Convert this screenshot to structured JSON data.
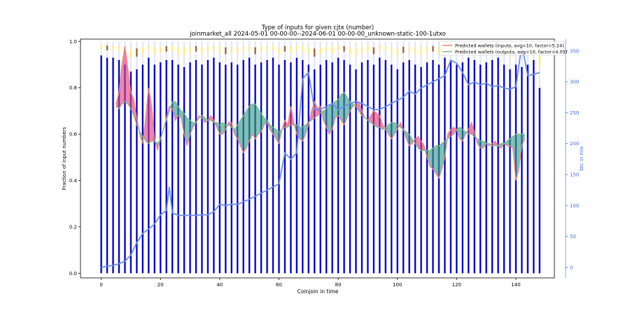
{
  "chart_data": {
    "type": "bar",
    "title": "Type of inputs for given cjtx (number)",
    "subtitle": "joinmarket_all 2024-05-01 00-00-00--2024-06-01 00-00-00_unknown-static-100-1utxo",
    "xlabel": "Coinjoin in time",
    "ylabel": "Fraction of input numbers",
    "y2label": "btc in mix",
    "xlim": [
      -7,
      153
    ],
    "ylim": [
      -0.02,
      1.01
    ],
    "y2lim": [
      -17,
      369
    ],
    "xticks": [
      0,
      20,
      40,
      60,
      80,
      100,
      120,
      140
    ],
    "yticks": [
      0.0,
      0.2,
      0.4,
      0.6,
      0.8,
      1.0
    ],
    "y2ticks": [
      0,
      50,
      100,
      150,
      200,
      250,
      300,
      350
    ],
    "grid": false,
    "legend_position": "top-right",
    "bar_colors": {
      "fresh_inputs": "#0000cd",
      "remixed_inputs": "#ffe866",
      "other_inputs": "#e6e6fa",
      "friends_inputs": "#8b4513"
    },
    "bars": {
      "x": [
        0,
        2,
        4,
        6,
        8,
        10,
        12,
        14,
        16,
        18,
        20,
        22,
        24,
        26,
        28,
        30,
        32,
        34,
        36,
        38,
        40,
        42,
        44,
        46,
        48,
        50,
        52,
        54,
        56,
        58,
        60,
        62,
        64,
        66,
        68,
        70,
        72,
        74,
        76,
        78,
        80,
        82,
        84,
        86,
        88,
        90,
        92,
        94,
        96,
        98,
        100,
        102,
        104,
        106,
        108,
        110,
        112,
        114,
        116,
        118,
        120,
        122,
        124,
        126,
        128,
        130,
        132,
        134,
        136,
        138,
        140,
        142,
        144,
        146,
        148
      ],
      "fresh_fraction": [
        0.94,
        0.93,
        0.93,
        0.92,
        0.9,
        0.87,
        0.88,
        0.9,
        0.93,
        0.9,
        0.91,
        0.92,
        0.92,
        0.9,
        0.89,
        0.91,
        0.92,
        0.9,
        0.92,
        0.93,
        0.91,
        0.9,
        0.91,
        0.9,
        0.92,
        0.93,
        0.9,
        0.91,
        0.92,
        0.93,
        0.9,
        0.92,
        0.91,
        0.93,
        0.92,
        0.9,
        0.88,
        0.9,
        0.92,
        0.91,
        0.93,
        0.92,
        0.9,
        0.88,
        0.91,
        0.92,
        0.9,
        0.93,
        0.92,
        0.9,
        0.88,
        0.91,
        0.92,
        0.9,
        0.89,
        0.91,
        0.92,
        0.9,
        0.93,
        0.92,
        0.9,
        0.91,
        0.93,
        0.92,
        0.9,
        0.91,
        0.92,
        0.93,
        0.9,
        0.88,
        0.9,
        0.89,
        0.9,
        0.92,
        0.8
      ]
    },
    "series": [
      {
        "name": "Predicted wallets (inputs, avg=10, factor=5.24)",
        "color": "#ff7f7f",
        "x": [
          5,
          6,
          7,
          8,
          9,
          10,
          11,
          12,
          13,
          14,
          15,
          16,
          17,
          18,
          19,
          20,
          21,
          22,
          23,
          24,
          25,
          26,
          27,
          28,
          29,
          30,
          31,
          32,
          33,
          34,
          35,
          36,
          37,
          38,
          39,
          40,
          41,
          42,
          43,
          44,
          45,
          46,
          47,
          48,
          49,
          50,
          51,
          52,
          53,
          54,
          55,
          56,
          57,
          58,
          59,
          60,
          61,
          62,
          63,
          64,
          65,
          66,
          67,
          68,
          69,
          70,
          71,
          72,
          73,
          74,
          75,
          76,
          77,
          78,
          79,
          80,
          81,
          82,
          83,
          84,
          85,
          86,
          87,
          88,
          89,
          90,
          91,
          92,
          93,
          94,
          95,
          96,
          97,
          98,
          99,
          100,
          101,
          102,
          103,
          104,
          105,
          106,
          107,
          108,
          109,
          110,
          111,
          112,
          113,
          114,
          115,
          116,
          117,
          118,
          119,
          120,
          121,
          122,
          123,
          124,
          125,
          126,
          127,
          128,
          129,
          130,
          131,
          132,
          133,
          134,
          135,
          136,
          137,
          138,
          139,
          140,
          141,
          142,
          143
        ],
        "values": [
          0.73,
          0.78,
          0.9,
          0.98,
          0.88,
          0.78,
          0.75,
          0.67,
          0.6,
          0.56,
          0.67,
          0.8,
          0.72,
          0.58,
          0.53,
          0.58,
          0.62,
          0.67,
          0.72,
          0.71,
          0.66,
          0.68,
          0.67,
          0.6,
          0.55,
          0.6,
          0.63,
          0.65,
          0.68,
          0.67,
          0.65,
          0.66,
          0.68,
          0.66,
          0.63,
          0.6,
          0.6,
          0.62,
          0.65,
          0.65,
          0.6,
          0.58,
          0.55,
          0.52,
          0.54,
          0.57,
          0.6,
          0.58,
          0.6,
          0.61,
          0.64,
          0.65,
          0.62,
          0.6,
          0.58,
          0.56,
          0.62,
          0.66,
          0.64,
          0.72,
          0.65,
          0.6,
          0.58,
          0.57,
          0.6,
          0.64,
          0.7,
          0.74,
          0.71,
          0.72,
          0.66,
          0.63,
          0.6,
          0.62,
          0.67,
          0.68,
          0.66,
          0.64,
          0.67,
          0.7,
          0.72,
          0.73,
          0.74,
          0.7,
          0.67,
          0.66,
          0.68,
          0.7,
          0.69,
          0.68,
          0.64,
          0.62,
          0.6,
          0.58,
          0.6,
          0.62,
          0.65,
          0.62,
          0.58,
          0.55,
          0.56,
          0.58,
          0.59,
          0.57,
          0.55,
          0.5,
          0.46,
          0.45,
          0.43,
          0.41,
          0.45,
          0.5,
          0.6,
          0.62,
          0.63,
          0.62,
          0.58,
          0.57,
          0.6,
          0.62,
          0.65,
          0.61,
          0.56,
          0.54,
          0.54,
          0.56,
          0.55,
          0.56,
          0.57,
          0.55,
          0.54,
          0.56,
          0.55,
          0.55,
          0.54,
          0.4,
          0.45,
          0.55,
          0.58
        ]
      },
      {
        "name": "Predicted wallets (outputs, avg=10, factor=4.05)",
        "color": "#7fbf7f",
        "x": [
          5,
          6,
          7,
          8,
          9,
          10,
          11,
          12,
          13,
          14,
          15,
          16,
          17,
          18,
          19,
          20,
          21,
          22,
          23,
          24,
          25,
          26,
          27,
          28,
          29,
          30,
          31,
          32,
          33,
          34,
          35,
          36,
          37,
          38,
          39,
          40,
          41,
          42,
          43,
          44,
          45,
          46,
          47,
          48,
          49,
          50,
          51,
          52,
          53,
          54,
          55,
          56,
          57,
          58,
          59,
          60,
          61,
          62,
          63,
          64,
          65,
          66,
          67,
          68,
          69,
          70,
          71,
          72,
          73,
          74,
          75,
          76,
          77,
          78,
          79,
          80,
          81,
          82,
          83,
          84,
          85,
          86,
          87,
          88,
          89,
          90,
          91,
          92,
          93,
          94,
          95,
          96,
          97,
          98,
          99,
          100,
          101,
          102,
          103,
          104,
          105,
          106,
          107,
          108,
          109,
          110,
          111,
          112,
          113,
          114,
          115,
          116,
          117,
          118,
          119,
          120,
          121,
          122,
          123,
          124,
          125,
          126,
          127,
          128,
          129,
          130,
          131,
          132,
          133,
          134,
          135,
          136,
          137,
          138,
          139,
          140,
          141,
          142,
          143
        ],
        "values": [
          0.72,
          0.71,
          0.73,
          0.74,
          0.73,
          0.71,
          0.68,
          0.64,
          0.61,
          0.59,
          0.57,
          0.56,
          0.57,
          0.57,
          0.56,
          0.58,
          0.62,
          0.66,
          0.7,
          0.74,
          0.74,
          0.72,
          0.7,
          0.69,
          0.67,
          0.66,
          0.65,
          0.65,
          0.67,
          0.68,
          0.67,
          0.66,
          0.66,
          0.65,
          0.65,
          0.64,
          0.65,
          0.64,
          0.64,
          0.63,
          0.62,
          0.64,
          0.66,
          0.68,
          0.7,
          0.72,
          0.73,
          0.73,
          0.71,
          0.69,
          0.67,
          0.66,
          0.64,
          0.63,
          0.62,
          0.61,
          0.62,
          0.63,
          0.63,
          0.64,
          0.64,
          0.64,
          0.63,
          0.63,
          0.64,
          0.65,
          0.66,
          0.67,
          0.68,
          0.69,
          0.7,
          0.71,
          0.72,
          0.73,
          0.74,
          0.75,
          0.77,
          0.78,
          0.76,
          0.74,
          0.73,
          0.72,
          0.7,
          0.68,
          0.67,
          0.66,
          0.65,
          0.64,
          0.63,
          0.63,
          0.62,
          0.63,
          0.64,
          0.65,
          0.65,
          0.64,
          0.63,
          0.62,
          0.61,
          0.6,
          0.58,
          0.56,
          0.54,
          0.53,
          0.53,
          0.53,
          0.53,
          0.54,
          0.55,
          0.55,
          0.56,
          0.57,
          0.58,
          0.59,
          0.6,
          0.62,
          0.63,
          0.62,
          0.61,
          0.6,
          0.6,
          0.59,
          0.58,
          0.57,
          0.57,
          0.56,
          0.56,
          0.55,
          0.55,
          0.55,
          0.56,
          0.56,
          0.57,
          0.58,
          0.59,
          0.6,
          0.6,
          0.6,
          0.6
        ]
      },
      {
        "axis": "right",
        "color": "#6b8ef0",
        "x": [
          0,
          2,
          4,
          6,
          8,
          10,
          12,
          14,
          16,
          18,
          20,
          22,
          23,
          24,
          26,
          28,
          30,
          32,
          34,
          36,
          38,
          40,
          42,
          44,
          46,
          48,
          50,
          52,
          54,
          56,
          58,
          60,
          62,
          64,
          66,
          68,
          70,
          72,
          74,
          76,
          78,
          80,
          82,
          84,
          86,
          88,
          90,
          92,
          94,
          96,
          98,
          100,
          102,
          104,
          106,
          108,
          110,
          112,
          114,
          116,
          118,
          120,
          122,
          124,
          126,
          128,
          130,
          132,
          134,
          136,
          138,
          140,
          142,
          144,
          146,
          148
        ],
        "values": [
          0,
          2,
          3,
          6,
          10,
          20,
          40,
          55,
          62,
          70,
          85,
          92,
          130,
          88,
          84,
          84,
          84,
          84,
          85,
          85,
          90,
          102,
          100,
          102,
          102,
          106,
          110,
          115,
          120,
          125,
          130,
          135,
          185,
          175,
          185,
          305,
          315,
          255,
          255,
          260,
          265,
          255,
          260,
          265,
          268,
          265,
          260,
          255,
          255,
          260,
          265,
          270,
          275,
          285,
          280,
          290,
          295,
          300,
          305,
          310,
          335,
          330,
          315,
          295,
          300,
          295,
          298,
          292,
          294,
          290,
          288,
          292,
          360,
          310,
          312,
          315
        ]
      }
    ]
  }
}
